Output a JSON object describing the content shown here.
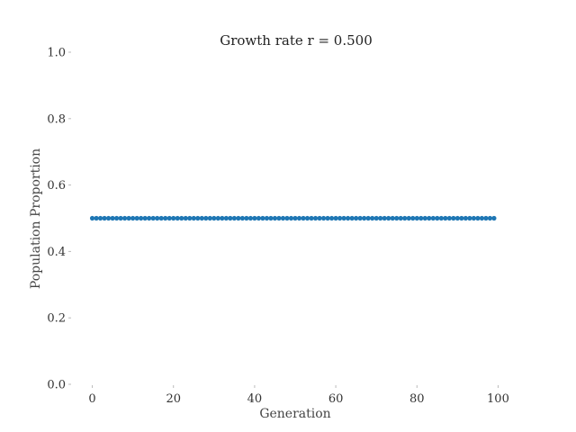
{
  "chart_data": {
    "type": "scatter",
    "title": "Growth rate r = 0.500",
    "xlabel": "Generation",
    "ylabel": "Population Proportion",
    "xlim": [
      -5,
      105
    ],
    "ylim": [
      0.0,
      1.0
    ],
    "x_ticks": [
      "0",
      "20",
      "40",
      "60",
      "80",
      "100"
    ],
    "x_tick_values": [
      0,
      20,
      40,
      60,
      80,
      100
    ],
    "y_ticks": [
      "0.0",
      "0.2",
      "0.4",
      "0.6",
      "0.8",
      "1.0"
    ],
    "y_tick_values": [
      0.0,
      0.2,
      0.4,
      0.6,
      0.8,
      1.0
    ],
    "grid": false,
    "x_start": 0,
    "x_end": 99,
    "y_value": 0.5,
    "marker_color": "#1f77b4"
  }
}
